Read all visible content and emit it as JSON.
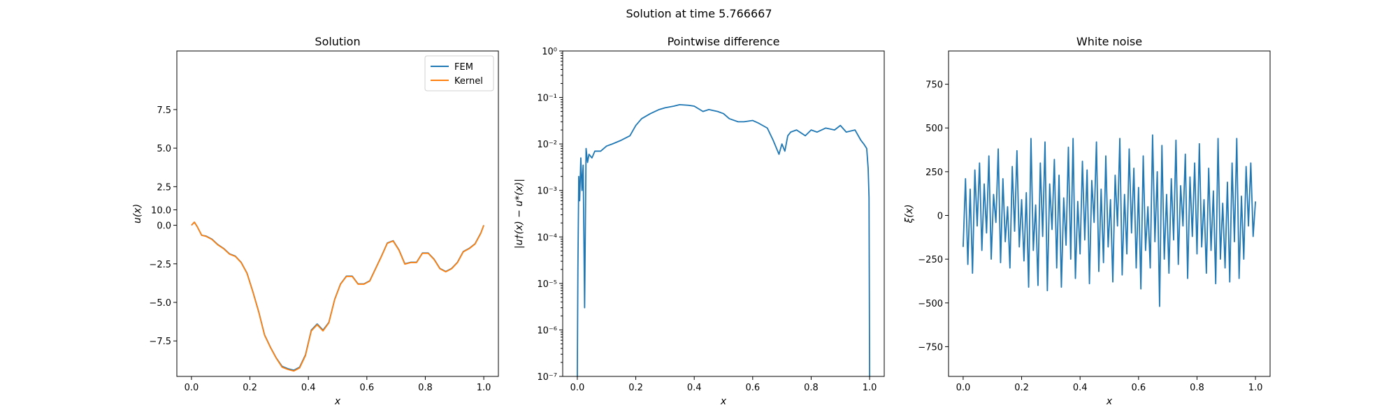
{
  "figure": {
    "suptitle": "Solution at time 5.766667"
  },
  "colors": {
    "fem": "#1f77b4",
    "kernel": "#ff7f0e",
    "noise": "#1f77b4",
    "diff": "#1f77b4"
  },
  "chart_data": [
    {
      "type": "line",
      "title": "Solution",
      "xlabel": "x",
      "ylabel": "u(x)",
      "xlim": [
        -0.05,
        1.05
      ],
      "ylim": [
        -9.8,
        11.3
      ],
      "xticks": [
        "0.0",
        "0.2",
        "0.4",
        "0.6",
        "0.8",
        "1.0"
      ],
      "yticks": [
        "−7.5",
        "−5.0",
        "−2.5",
        "0.0",
        "2.5",
        "5.0",
        "7.5",
        "10.0"
      ],
      "legend": {
        "position": "top-right",
        "entries": [
          "FEM",
          "Kernel"
        ]
      },
      "series": [
        {
          "name": "FEM",
          "x": [
            0,
            0.01,
            0.02,
            0.035,
            0.05,
            0.07,
            0.09,
            0.11,
            0.13,
            0.15,
            0.17,
            0.19,
            0.21,
            0.23,
            0.25,
            0.27,
            0.29,
            0.31,
            0.33,
            0.35,
            0.37,
            0.39,
            0.41,
            0.43,
            0.45,
            0.47,
            0.49,
            0.51,
            0.53,
            0.55,
            0.57,
            0.59,
            0.61,
            0.63,
            0.65,
            0.67,
            0.69,
            0.71,
            0.73,
            0.75,
            0.77,
            0.79,
            0.81,
            0.83,
            0.85,
            0.87,
            0.89,
            0.91,
            0.93,
            0.95,
            0.97,
            0.99,
            1.0
          ],
          "y": [
            0,
            0.2,
            -0.1,
            -0.65,
            -0.7,
            -0.9,
            -1.25,
            -1.5,
            -1.85,
            -2.0,
            -2.4,
            -3.1,
            -4.3,
            -5.6,
            -7.1,
            -7.9,
            -8.6,
            -9.15,
            -9.3,
            -9.4,
            -9.2,
            -8.4,
            -6.8,
            -6.4,
            -6.8,
            -6.3,
            -4.8,
            -3.8,
            -3.3,
            -3.3,
            -3.8,
            -3.8,
            -3.6,
            -2.8,
            -2.0,
            -1.15,
            -1.0,
            -1.6,
            -2.5,
            -2.4,
            -2.4,
            -1.8,
            -1.8,
            -2.2,
            -2.8,
            -3.0,
            -2.8,
            -2.4,
            -1.7,
            -1.5,
            -1.2,
            -0.5,
            0
          ]
        },
        {
          "name": "Kernel",
          "x": [
            0,
            0.01,
            0.02,
            0.035,
            0.05,
            0.07,
            0.09,
            0.11,
            0.13,
            0.15,
            0.17,
            0.19,
            0.21,
            0.23,
            0.25,
            0.27,
            0.29,
            0.31,
            0.33,
            0.35,
            0.37,
            0.39,
            0.41,
            0.43,
            0.45,
            0.47,
            0.49,
            0.51,
            0.53,
            0.55,
            0.57,
            0.59,
            0.61,
            0.63,
            0.65,
            0.67,
            0.69,
            0.71,
            0.73,
            0.75,
            0.77,
            0.79,
            0.81,
            0.83,
            0.85,
            0.87,
            0.89,
            0.91,
            0.93,
            0.95,
            0.97,
            0.99,
            1.0
          ],
          "y": [
            0,
            0.2,
            -0.1,
            -0.65,
            -0.72,
            -0.92,
            -1.27,
            -1.52,
            -1.87,
            -2.02,
            -2.42,
            -3.12,
            -4.32,
            -5.62,
            -7.12,
            -7.92,
            -8.62,
            -9.2,
            -9.35,
            -9.45,
            -9.25,
            -8.45,
            -6.85,
            -6.45,
            -6.85,
            -6.33,
            -4.82,
            -3.82,
            -3.32,
            -3.32,
            -3.82,
            -3.82,
            -3.62,
            -2.82,
            -2.02,
            -1.17,
            -1.02,
            -1.62,
            -2.52,
            -2.42,
            -2.42,
            -1.82,
            -1.82,
            -2.22,
            -2.82,
            -3.02,
            -2.82,
            -2.42,
            -1.72,
            -1.52,
            -1.22,
            -0.52,
            0
          ]
        }
      ]
    },
    {
      "type": "line",
      "title": "Pointwise difference",
      "xlabel": "x",
      "ylabel": "|u†(x) − u*(x)|",
      "yscale": "log",
      "xlim": [
        -0.05,
        1.05
      ],
      "ylim": [
        1e-07,
        1
      ],
      "xticks": [
        "0.0",
        "0.2",
        "0.4",
        "0.6",
        "0.8",
        "1.0"
      ],
      "yticks": [
        "10⁻⁷",
        "10⁻⁶",
        "10⁻⁵",
        "10⁻⁴",
        "10⁻³",
        "10⁻²",
        "10⁻¹",
        "10⁰"
      ],
      "series": [
        {
          "name": "",
          "x": [
            0,
            0.002,
            0.005,
            0.008,
            0.012,
            0.016,
            0.02,
            0.025,
            0.03,
            0.035,
            0.04,
            0.05,
            0.06,
            0.08,
            0.1,
            0.12,
            0.15,
            0.18,
            0.2,
            0.22,
            0.25,
            0.28,
            0.3,
            0.33,
            0.35,
            0.38,
            0.4,
            0.43,
            0.45,
            0.48,
            0.5,
            0.52,
            0.55,
            0.57,
            0.6,
            0.62,
            0.65,
            0.67,
            0.69,
            0.7,
            0.71,
            0.72,
            0.73,
            0.75,
            0.78,
            0.8,
            0.82,
            0.85,
            0.88,
            0.9,
            0.92,
            0.95,
            0.97,
            0.98,
            0.99,
            0.995,
            0.998,
            1.0
          ],
          "y": [
            1e-07,
            2e-05,
            0.002,
            0.0006,
            0.005,
            0.001,
            0.0035,
            3e-06,
            0.008,
            0.004,
            0.006,
            0.005,
            0.007,
            0.007,
            0.009,
            0.01,
            0.012,
            0.015,
            0.025,
            0.035,
            0.045,
            0.055,
            0.06,
            0.065,
            0.07,
            0.068,
            0.065,
            0.05,
            0.055,
            0.05,
            0.045,
            0.035,
            0.03,
            0.03,
            0.032,
            0.028,
            0.022,
            0.012,
            0.006,
            0.01,
            0.007,
            0.015,
            0.018,
            0.02,
            0.015,
            0.02,
            0.018,
            0.022,
            0.02,
            0.025,
            0.018,
            0.02,
            0.012,
            0.01,
            0.008,
            0.003,
            0.0007,
            1e-07
          ]
        }
      ]
    },
    {
      "type": "line",
      "title": "White noise",
      "xlabel": "x",
      "ylabel": "ξ(x)",
      "xlim": [
        -0.05,
        1.05
      ],
      "ylim": [
        -920,
        940
      ],
      "xticks": [
        "0.0",
        "0.2",
        "0.4",
        "0.6",
        "0.8",
        "1.0"
      ],
      "yticks": [
        "−750",
        "−500",
        "−250",
        "0",
        "250",
        "500",
        "750"
      ],
      "series": [
        {
          "name": "",
          "x": [
            0,
            0.008,
            0.016,
            0.024,
            0.032,
            0.04,
            0.048,
            0.056,
            0.064,
            0.072,
            0.08,
            0.088,
            0.096,
            0.104,
            0.112,
            0.12,
            0.128,
            0.136,
            0.144,
            0.152,
            0.16,
            0.168,
            0.176,
            0.184,
            0.192,
            0.2,
            0.208,
            0.216,
            0.224,
            0.232,
            0.24,
            0.248,
            0.256,
            0.264,
            0.272,
            0.28,
            0.288,
            0.296,
            0.304,
            0.312,
            0.32,
            0.328,
            0.336,
            0.344,
            0.352,
            0.36,
            0.368,
            0.376,
            0.384,
            0.392,
            0.4,
            0.408,
            0.416,
            0.424,
            0.432,
            0.44,
            0.448,
            0.456,
            0.464,
            0.472,
            0.48,
            0.488,
            0.496,
            0.504,
            0.512,
            0.52,
            0.528,
            0.536,
            0.544,
            0.552,
            0.56,
            0.568,
            0.576,
            0.584,
            0.592,
            0.6,
            0.608,
            0.616,
            0.624,
            0.632,
            0.64,
            0.648,
            0.656,
            0.664,
            0.672,
            0.68,
            0.688,
            0.696,
            0.704,
            0.712,
            0.72,
            0.728,
            0.736,
            0.744,
            0.752,
            0.76,
            0.768,
            0.776,
            0.784,
            0.792,
            0.8,
            0.808,
            0.816,
            0.824,
            0.832,
            0.84,
            0.848,
            0.856,
            0.864,
            0.872,
            0.88,
            0.888,
            0.896,
            0.904,
            0.912,
            0.92,
            0.928,
            0.936,
            0.944,
            0.952,
            0.96,
            0.968,
            0.976,
            0.984,
            0.992,
            1.0
          ],
          "y": [
            -180,
            210,
            -280,
            150,
            -330,
            260,
            -60,
            300,
            -200,
            180,
            -100,
            340,
            -250,
            120,
            -40,
            380,
            -270,
            210,
            -150,
            50,
            -300,
            280,
            -90,
            370,
            -180,
            90,
            -260,
            130,
            -410,
            440,
            -200,
            60,
            -400,
            300,
            -120,
            420,
            -430,
            180,
            -80,
            320,
            -300,
            230,
            -410,
            100,
            -170,
            390,
            -250,
            440,
            -360,
            80,
            -220,
            310,
            -140,
            260,
            -390,
            200,
            -40,
            420,
            -320,
            150,
            -270,
            340,
            -180,
            90,
            -380,
            230,
            -60,
            440,
            -340,
            120,
            -220,
            380,
            -100,
            270,
            -300,
            160,
            -420,
            340,
            -200,
            50,
            -300,
            460,
            -150,
            250,
            -520,
            400,
            -250,
            120,
            -330,
            210,
            -140,
            430,
            -280,
            170,
            -60,
            350,
            -360,
            220,
            -120,
            300,
            -220,
            410,
            -180,
            90,
            -330,
            270,
            -200,
            140,
            -390,
            440,
            -250,
            70,
            -300,
            190,
            -380,
            300,
            -150,
            440,
            -360,
            110,
            -250,
            280,
            -60,
            300,
            -120,
            80
          ]
        }
      ]
    }
  ]
}
